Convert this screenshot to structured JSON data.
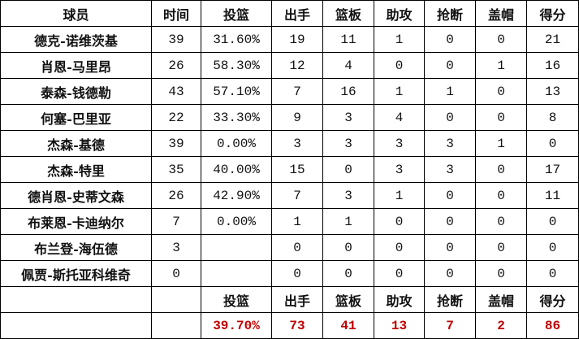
{
  "headers": [
    "球员",
    "时间",
    "投篮",
    "出手",
    "篮板",
    "助攻",
    "抢断",
    "盖帽",
    "得分"
  ],
  "rows": [
    [
      "德克-诺维茨基",
      "39",
      "31.60%",
      "19",
      "11",
      "1",
      "0",
      "0",
      "21"
    ],
    [
      "肖恩-马里昂",
      "26",
      "58.30%",
      "12",
      "4",
      "0",
      "0",
      "1",
      "16"
    ],
    [
      "泰森-钱德勒",
      "43",
      "57.10%",
      "7",
      "16",
      "1",
      "1",
      "0",
      "13"
    ],
    [
      "何塞-巴里亚",
      "22",
      "33.30%",
      "9",
      "3",
      "4",
      "0",
      "0",
      "8"
    ],
    [
      "杰森-基德",
      "39",
      "0.00%",
      "3",
      "3",
      "3",
      "3",
      "1",
      "0"
    ],
    [
      "杰森-特里",
      "35",
      "40.00%",
      "15",
      "0",
      "3",
      "3",
      "0",
      "17"
    ],
    [
      "德肖恩-史蒂文森",
      "26",
      "42.90%",
      "7",
      "3",
      "1",
      "0",
      "0",
      "11"
    ],
    [
      "布莱恩-卡迪纳尔",
      "7",
      "0.00%",
      "1",
      "1",
      "0",
      "0",
      "0",
      "0"
    ],
    [
      "布兰登-海伍德",
      "3",
      "",
      "0",
      "0",
      "0",
      "0",
      "0",
      "0"
    ],
    [
      "佩贾-斯托亚科维奇",
      "0",
      "",
      "0",
      "0",
      "0",
      "0",
      "0",
      "0"
    ]
  ],
  "totals_headers": [
    "投篮",
    "出手",
    "篮板",
    "助攻",
    "抢断",
    "盖帽",
    "得分"
  ],
  "totals": [
    "39.70%",
    "73",
    "41",
    "13",
    "7",
    "2",
    "86"
  ],
  "colors": {
    "totals_text": "#c00000",
    "grid": "#000000"
  }
}
